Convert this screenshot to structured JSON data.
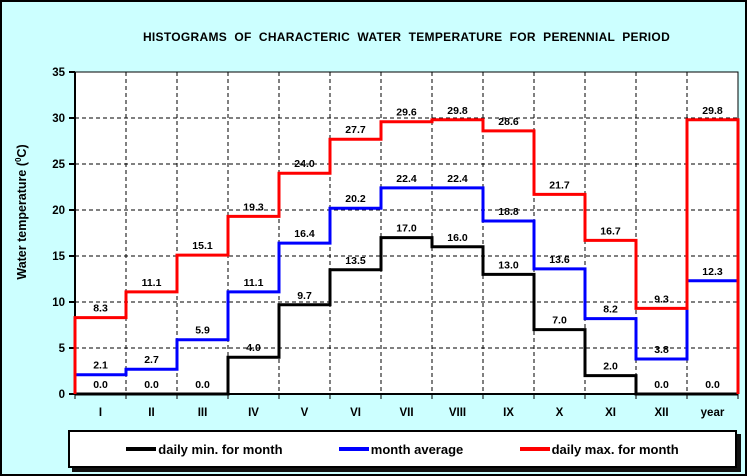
{
  "title": "HISTOGRAMS  OF  CHARACTERIC  WATER  TEMPERATURE  FOR  PERENNIAL  PERIOD",
  "y_axis": {
    "prefix": "Water temperature (",
    "sup": "0",
    "suffix": "C)"
  },
  "colors": {
    "background": "#CCFFFF",
    "plot_background": "#FFFFFF",
    "axis": "#000000"
  },
  "chart_data": {
    "type": "line",
    "style": "step-histogram-outline",
    "title": "HISTOGRAMS OF CHARACTERIC WATER TEMPERATURE FOR PERENNIAL PERIOD",
    "categories": [
      "I",
      "II",
      "III",
      "IV",
      "V",
      "VI",
      "VII",
      "VIII",
      "IX",
      "X",
      "XI",
      "XII",
      "year"
    ],
    "series": [
      {
        "name": "daily min. for month",
        "color": "#000000",
        "values": [
          0.0,
          0.0,
          0.0,
          4.0,
          9.7,
          13.5,
          17.0,
          16.0,
          13.0,
          7.0,
          2.0,
          0.0,
          0.0
        ]
      },
      {
        "name": "month average",
        "color": "#0000FF",
        "values": [
          2.1,
          2.7,
          5.9,
          11.1,
          16.4,
          20.2,
          22.4,
          22.4,
          18.8,
          13.6,
          8.2,
          3.8,
          12.3
        ]
      },
      {
        "name": "daily max. for month",
        "color": "#FF0000",
        "values": [
          8.3,
          11.1,
          15.1,
          19.3,
          24.0,
          27.7,
          29.6,
          29.8,
          28.6,
          21.7,
          16.7,
          9.3,
          29.8
        ]
      }
    ],
    "xlabel": "",
    "ylabel": "Water temperature (0C)",
    "ylim": [
      0,
      35
    ],
    "ytick_step": 5,
    "grid": true,
    "legend_position": "bottom"
  }
}
